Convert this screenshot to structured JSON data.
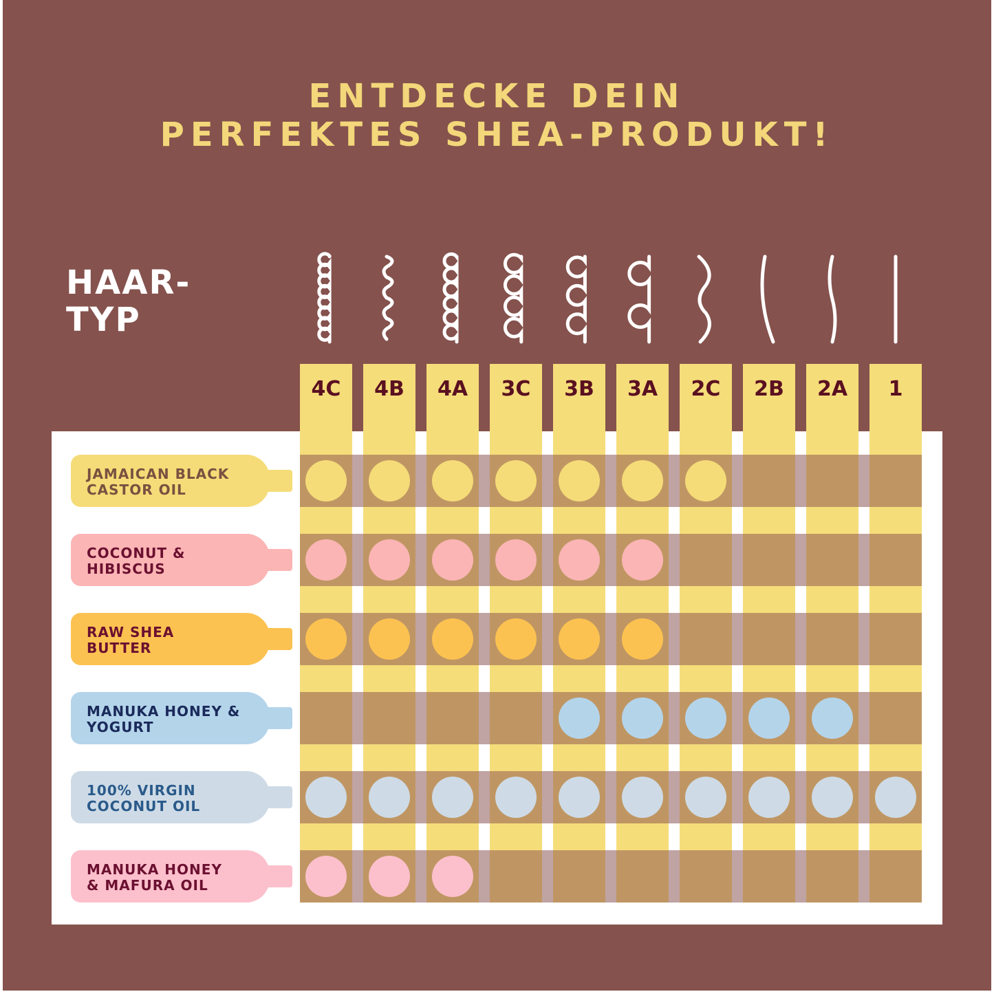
{
  "title": {
    "line1": "ENTDECKE DEIN",
    "line2": "PERFEKTES SHEA-PRODUKT!"
  },
  "hair_label": {
    "line1": "HAAR-",
    "line2": "TYP"
  },
  "hair_types": [
    {
      "code": "4C",
      "icon": "tight-coil-icon"
    },
    {
      "code": "4B",
      "icon": "zigzag-coil-icon"
    },
    {
      "code": "4A",
      "icon": "coil-icon"
    },
    {
      "code": "3C",
      "icon": "curl-icon"
    },
    {
      "code": "3B",
      "icon": "curl-icon"
    },
    {
      "code": "3A",
      "icon": "loose-curl-icon"
    },
    {
      "code": "2C",
      "icon": "wave-icon"
    },
    {
      "code": "2B",
      "icon": "wave-icon"
    },
    {
      "code": "2A",
      "icon": "wave-icon"
    },
    {
      "code": "1",
      "icon": "straight-icon"
    }
  ],
  "colors": {
    "background": "#85524d",
    "title": "#f3d77a",
    "column": "#f5dd7a",
    "cell": "#bf9663",
    "gap": "#c0a3a3"
  },
  "products": [
    {
      "line1": "JAMAICAN BLACK",
      "line2": "CASTOR OIL",
      "color": "#f5dc78",
      "text_color": "#7a5040",
      "suitable": [
        "4C",
        "4B",
        "4A",
        "3C",
        "3B",
        "3A",
        "2C"
      ]
    },
    {
      "line1": "COCONUT &",
      "line2": "HIBISCUS",
      "color": "#fbb5b5",
      "text_color": "#6b1030",
      "suitable": [
        "4C",
        "4B",
        "4A",
        "3C",
        "3B",
        "3A"
      ]
    },
    {
      "line1": "RAW SHEA",
      "line2": "BUTTER",
      "color": "#fcc251",
      "text_color": "#6b1030",
      "suitable": [
        "4C",
        "4B",
        "4A",
        "3C",
        "3B",
        "3A"
      ]
    },
    {
      "line1": "MANUKA HONEY &",
      "line2": "YOGURT",
      "color": "#b4d4ea",
      "text_color": "#1a2a5a",
      "suitable": [
        "3B",
        "3A",
        "2C",
        "2B",
        "2A"
      ]
    },
    {
      "line1": "100% VIRGIN",
      "line2": "COCONUT OIL",
      "color": "#cedbe6",
      "text_color": "#2a5a8a",
      "suitable": [
        "4C",
        "4B",
        "4A",
        "3C",
        "3B",
        "3A",
        "2C",
        "2B",
        "2A",
        "1"
      ]
    },
    {
      "line1": "MANUKA HONEY",
      "line2": "& MAFURA OIL",
      "color": "#fcc0cc",
      "text_color": "#6b1030",
      "suitable": [
        "4C",
        "4B",
        "4A"
      ]
    }
  ]
}
